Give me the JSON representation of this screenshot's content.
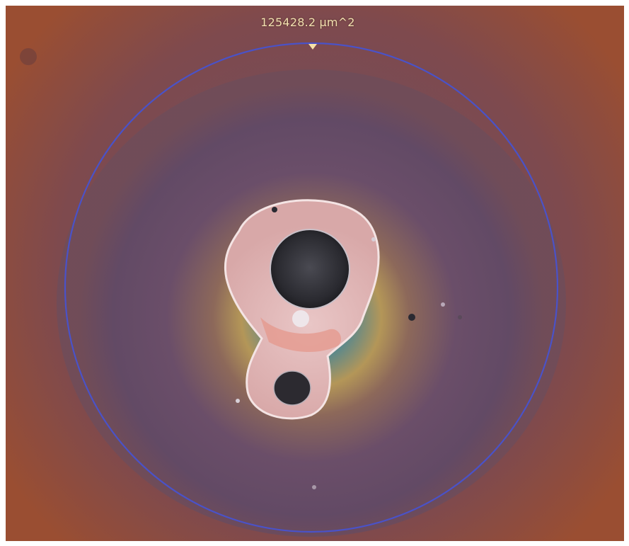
{
  "measurement": {
    "area_label": "125428.2 µm^2",
    "outline_color": "#4a52c8",
    "label_color": "#f2e0b0"
  },
  "image": {
    "subject": "microscope-droplet-residue",
    "background_color": "#8a4a3a"
  }
}
